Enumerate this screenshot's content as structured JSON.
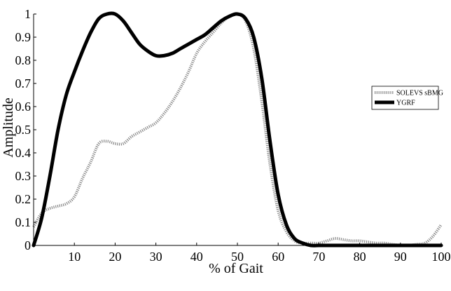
{
  "chart_data": {
    "type": "line",
    "title": "",
    "xlabel": "% of Gait",
    "ylabel": "Amplitude",
    "xlim": [
      0,
      100
    ],
    "ylim": [
      0,
      1
    ],
    "xticks": [
      10,
      20,
      30,
      40,
      50,
      60,
      70,
      80,
      90,
      100
    ],
    "yticks": [
      0,
      0.1,
      0.2,
      0.3,
      0.4,
      0.5,
      0.6,
      0.7,
      0.8,
      0.9,
      1
    ],
    "ytick_labels": [
      "0",
      "0.1",
      "0.2",
      "0.3",
      "0.4",
      "0.5",
      "0.6",
      "0.7",
      "0.8",
      "0.9",
      "1"
    ],
    "grid": false,
    "legend_position": "right",
    "series": [
      {
        "name": "SOLEVS sBMG",
        "color": "#888888",
        "style": "dotted",
        "x": [
          0,
          2,
          4,
          6,
          8,
          10,
          12,
          14,
          16,
          18,
          20,
          22,
          24,
          26,
          28,
          30,
          32,
          34,
          36,
          38,
          40,
          42,
          44,
          46,
          48,
          50,
          52,
          54,
          56,
          58,
          60,
          62,
          64,
          66,
          68,
          70,
          72,
          74,
          76,
          78,
          80,
          82,
          84,
          86,
          88,
          90,
          92,
          94,
          96,
          98,
          100
        ],
        "y": [
          0.08,
          0.14,
          0.16,
          0.17,
          0.18,
          0.21,
          0.29,
          0.36,
          0.44,
          0.45,
          0.44,
          0.44,
          0.47,
          0.49,
          0.51,
          0.53,
          0.57,
          0.62,
          0.68,
          0.75,
          0.83,
          0.88,
          0.92,
          0.96,
          0.99,
          1.0,
          0.97,
          0.85,
          0.62,
          0.35,
          0.15,
          0.06,
          0.02,
          0.01,
          0.01,
          0.01,
          0.02,
          0.03,
          0.025,
          0.02,
          0.02,
          0.015,
          0.01,
          0.01,
          0.005,
          0.0,
          0.0,
          0.005,
          0.01,
          0.04,
          0.09
        ]
      },
      {
        "name": "YGRF",
        "color": "#000000",
        "style": "solid",
        "x": [
          0,
          2,
          4,
          6,
          8,
          10,
          12,
          14,
          16,
          18,
          20,
          22,
          24,
          26,
          28,
          30,
          32,
          34,
          36,
          38,
          40,
          42,
          44,
          46,
          48,
          50,
          52,
          54,
          56,
          58,
          60,
          62,
          64,
          66,
          68,
          70,
          72,
          74,
          76,
          78,
          80,
          82,
          84,
          86,
          88,
          90,
          92,
          94,
          96,
          98,
          100
        ],
        "y": [
          0.0,
          0.12,
          0.3,
          0.5,
          0.65,
          0.75,
          0.84,
          0.92,
          0.98,
          1.0,
          1.0,
          0.97,
          0.92,
          0.87,
          0.84,
          0.82,
          0.82,
          0.83,
          0.85,
          0.87,
          0.89,
          0.91,
          0.94,
          0.97,
          0.99,
          1.0,
          0.98,
          0.9,
          0.72,
          0.45,
          0.22,
          0.09,
          0.03,
          0.01,
          0.0,
          0.0,
          0.0,
          0.0,
          0.0,
          0.0,
          0.0,
          0.0,
          0.0,
          0.0,
          0.0,
          0.0,
          0.0,
          0.0,
          0.0,
          0.0,
          0.0
        ]
      }
    ]
  }
}
